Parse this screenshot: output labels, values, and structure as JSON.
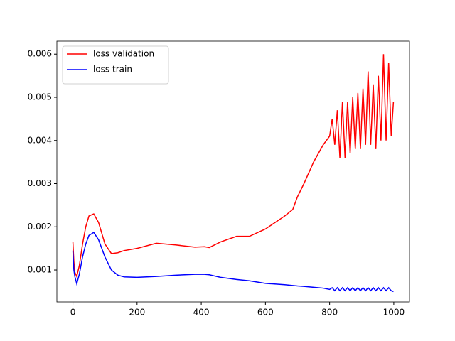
{
  "chart_data": {
    "type": "line",
    "x": [
      0,
      3,
      6,
      12,
      20,
      30,
      40,
      50,
      65,
      80,
      100,
      120,
      140,
      160,
      200,
      260,
      320,
      380,
      410,
      425,
      460,
      510,
      550,
      600,
      660,
      685,
      700,
      720,
      750,
      780,
      800,
      808,
      816,
      824,
      832,
      840,
      848,
      856,
      864,
      872,
      880,
      888,
      896,
      904,
      912,
      920,
      928,
      936,
      944,
      952,
      960,
      968,
      976,
      984,
      992,
      999
    ],
    "series": [
      {
        "name": "loss validation",
        "color": "#ff0000",
        "values": [
          0.00165,
          0.0012,
          0.00095,
          0.00085,
          0.0011,
          0.0016,
          0.002,
          0.00225,
          0.0023,
          0.0021,
          0.0016,
          0.00138,
          0.0014,
          0.00145,
          0.0015,
          0.00162,
          0.00158,
          0.00153,
          0.00154,
          0.00152,
          0.00165,
          0.00178,
          0.00178,
          0.00195,
          0.00225,
          0.0024,
          0.0027,
          0.003,
          0.0035,
          0.0039,
          0.0041,
          0.0045,
          0.0039,
          0.0047,
          0.0036,
          0.0049,
          0.0036,
          0.0049,
          0.0037,
          0.005,
          0.0038,
          0.0051,
          0.0038,
          0.0052,
          0.0039,
          0.0056,
          0.0039,
          0.0053,
          0.0038,
          0.0055,
          0.004,
          0.006,
          0.004,
          0.0058,
          0.0041,
          0.0049
        ]
      },
      {
        "name": "loss train",
        "color": "#0000ff",
        "values": [
          0.00145,
          0.001,
          0.00085,
          0.00068,
          0.0009,
          0.0013,
          0.0016,
          0.0018,
          0.00187,
          0.0017,
          0.0013,
          0.001,
          0.00088,
          0.00084,
          0.00083,
          0.00085,
          0.00088,
          0.0009,
          0.0009,
          0.00089,
          0.00083,
          0.00078,
          0.00075,
          0.00069,
          0.00066,
          0.00064,
          0.00063,
          0.00062,
          0.0006,
          0.00058,
          0.00055,
          0.00059,
          0.00052,
          0.00059,
          0.00052,
          0.00059,
          0.00052,
          0.00059,
          0.00052,
          0.00059,
          0.00052,
          0.00059,
          0.00052,
          0.00059,
          0.00052,
          0.00059,
          0.00052,
          0.00059,
          0.00052,
          0.00059,
          0.00052,
          0.00059,
          0.00052,
          0.00059,
          0.00052,
          0.0005
        ]
      }
    ],
    "xlim": [
      -49.95,
      1048.95
    ],
    "ylim": [
      0.00026,
      0.0063
    ],
    "xticks": [
      0,
      200,
      400,
      600,
      800,
      1000
    ],
    "yticks": [
      0.001,
      0.002,
      0.003,
      0.004,
      0.005,
      0.006
    ],
    "legend": "upper left",
    "grid": false
  }
}
